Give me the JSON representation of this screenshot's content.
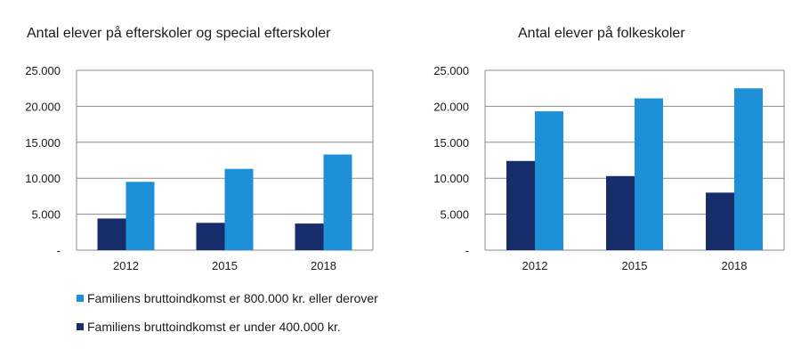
{
  "colors": {
    "high_income": "#1e90d8",
    "low_income": "#172c6b",
    "grid": "#8a8a8a"
  },
  "legend": [
    {
      "label": "Familiens bruttoindkomst er 800.000 kr. eller derover",
      "color": "#1e90d8"
    },
    {
      "label": "Familiens bruttoindkomst er under 400.000 kr.",
      "color": "#172c6b"
    }
  ],
  "chart_data": [
    {
      "type": "bar",
      "title": "Antal elever på efterskoler og special efterskoler",
      "categories": [
        "2012",
        "2015",
        "2018"
      ],
      "ylim": [
        0,
        25000
      ],
      "yticks": [
        0,
        5000,
        10000,
        15000,
        20000,
        25000
      ],
      "ytick_labels": [
        "-",
        "5.000",
        "10.000",
        "15.000",
        "20.000",
        "25.000"
      ],
      "grid": true,
      "series": [
        {
          "name": "Familiens bruttoindkomst er under 400.000 kr.",
          "color": "#172c6b",
          "values": [
            4400,
            3800,
            3700
          ]
        },
        {
          "name": "Familiens bruttoindkomst er 800.000 kr. eller derover",
          "color": "#1e90d8",
          "values": [
            9500,
            11300,
            13300
          ]
        }
      ]
    },
    {
      "type": "bar",
      "title": "Antal elever på folkeskoler",
      "categories": [
        "2012",
        "2015",
        "2018"
      ],
      "ylim": [
        0,
        25000
      ],
      "yticks": [
        0,
        5000,
        10000,
        15000,
        20000,
        25000
      ],
      "ytick_labels": [
        "-",
        "5.000",
        "10.000",
        "15.000",
        "20.000",
        "25.000"
      ],
      "grid": true,
      "series": [
        {
          "name": "Familiens bruttoindkomst er under 400.000 kr.",
          "color": "#172c6b",
          "values": [
            12400,
            10300,
            8000
          ]
        },
        {
          "name": "Familiens bruttoindkomst er 800.000 kr. eller derover",
          "color": "#1e90d8",
          "values": [
            19300,
            21100,
            22500
          ]
        }
      ]
    }
  ]
}
